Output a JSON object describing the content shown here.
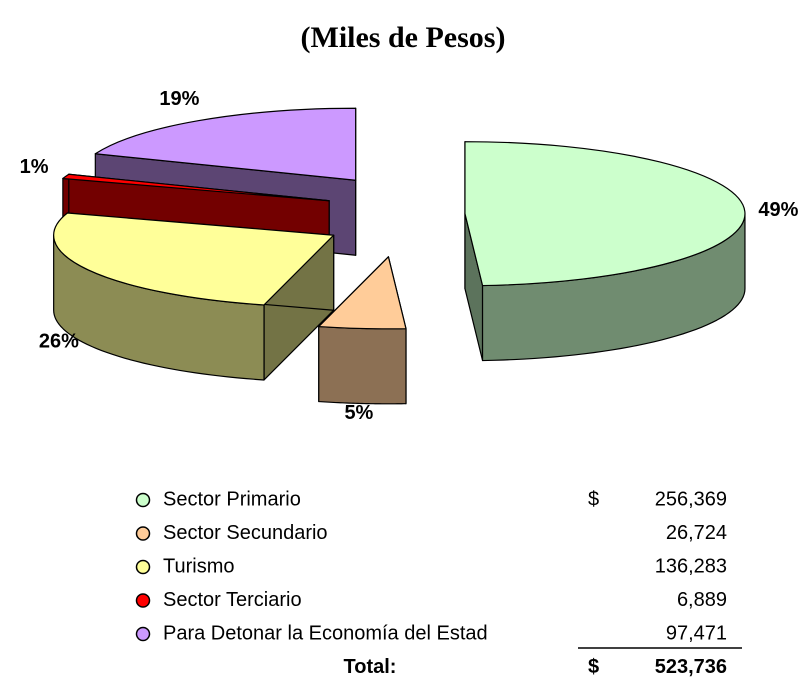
{
  "chart_data": {
    "type": "pie3d",
    "title": "(Miles de Pesos)",
    "categories": [
      "Sector Primario",
      "Sector Secundario",
      "Turismo",
      "Sector Terciario",
      "Para Detonar la Economía del Estad"
    ],
    "values": [
      49,
      5,
      26,
      1,
      19
    ],
    "value_labels": [
      "49%",
      "5%",
      "26%",
      "1%",
      "19%"
    ],
    "colors": [
      "#ccffcc",
      "#ffcc99",
      "#ffff99",
      "#ff0000",
      "#cc99ff"
    ],
    "legend_table": {
      "currency": "$",
      "amounts": [
        "256,369",
        "26,724",
        "136,283",
        "6,889",
        "97,471"
      ],
      "total_label": "Total:",
      "total": "523,736"
    }
  }
}
